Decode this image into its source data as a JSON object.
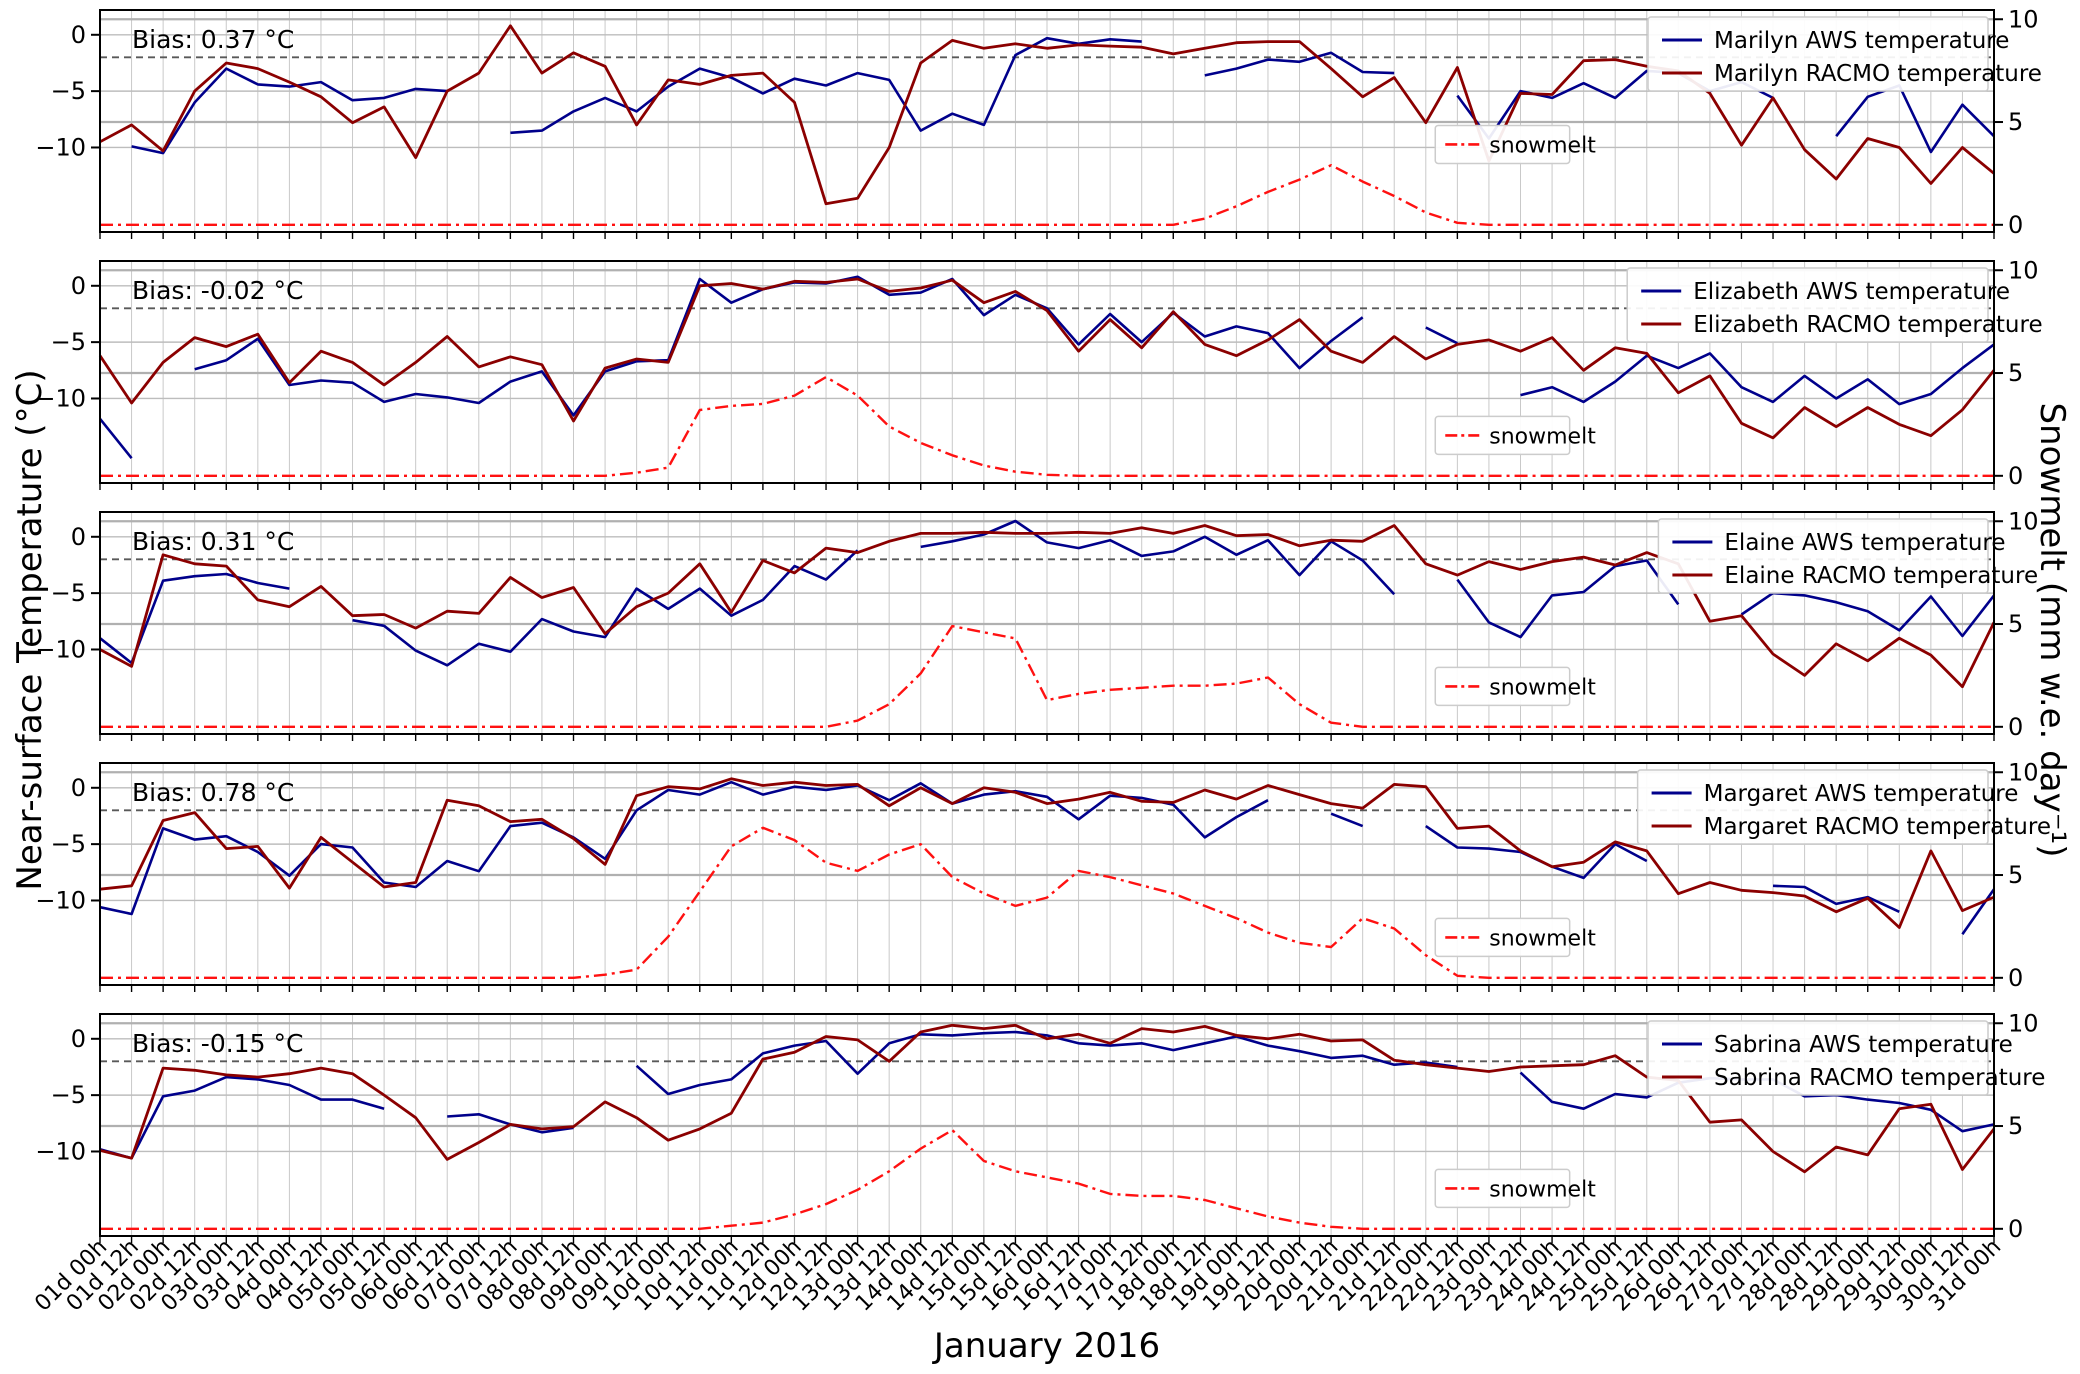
{
  "chart_data": {
    "type": "line",
    "xlabel": "January 2016",
    "ylabel_left": "Near-surface Temperature (°C)",
    "ylabel_right": "Snowmelt (mm w.e. day⁻¹)",
    "x_start_day": 1,
    "x_step_days": 0.5,
    "x_range_days": [
      1,
      31
    ],
    "temp_ylim": [
      -17.5,
      2.2
    ],
    "melt_ylim": [
      0,
      10
    ],
    "temp_tick_labels": [
      "0",
      "−5",
      "−10"
    ],
    "temp_tick_values": [
      0,
      -5,
      -10
    ],
    "melt_tick_labels": [
      "10",
      "5",
      "0"
    ],
    "melt_tick_values": [
      10,
      5,
      0
    ],
    "dashed_reference_temp": -2,
    "colors": {
      "aws": "#00008b",
      "racmo": "#8b0000",
      "snowmelt": "#ff1111",
      "grid": "#c9c9c9",
      "dashed": "#595959"
    },
    "x_tick_labels": [
      "01d 00h",
      "01d 12h",
      "02d 00h",
      "02d 12h",
      "03d 00h",
      "03d 12h",
      "04d 00h",
      "04d 12h",
      "05d 00h",
      "05d 12h",
      "06d 00h",
      "06d 12h",
      "07d 00h",
      "07d 12h",
      "08d 00h",
      "08d 12h",
      "09d 00h",
      "09d 12h",
      "10d 00h",
      "10d 12h",
      "11d 00h",
      "11d 12h",
      "12d 00h",
      "12d 12h",
      "13d 00h",
      "13d 12h",
      "14d 00h",
      "14d 12h",
      "15d 00h",
      "15d 12h",
      "16d 00h",
      "16d 12h",
      "17d 00h",
      "17d 12h",
      "18d 00h",
      "18d 12h",
      "19d 00h",
      "19d 12h",
      "20d 00h",
      "20d 12h",
      "21d 00h",
      "21d 12h",
      "22d 00h",
      "22d 12h",
      "23d 00h",
      "23d 12h",
      "24d 00h",
      "24d 12h",
      "25d 00h",
      "25d 12h",
      "26d 00h",
      "26d 12h",
      "27d 00h",
      "27d 12h",
      "28d 00h",
      "28d 12h",
      "29d 00h",
      "29d 12h",
      "30d 00h",
      "30d 12h",
      "31d 00h"
    ],
    "panels": [
      {
        "station": "Marilyn",
        "bias_label": "Bias: 0.37 °C",
        "legend": [
          "Marilyn AWS temperature",
          "Marilyn RACMO temperature"
        ],
        "snowmelt_label": "snowmelt",
        "aws_temp": [
          null,
          -9.9,
          -10.5,
          -6.0,
          -3.0,
          -4.4,
          -4.6,
          -4.2,
          -5.8,
          -5.6,
          -4.8,
          -5.0,
          null,
          -8.7,
          -8.5,
          -6.8,
          -5.6,
          -6.8,
          -4.6,
          -3.0,
          -3.8,
          -5.2,
          -3.9,
          -4.5,
          -3.4,
          -4.0,
          -8.5,
          -7.0,
          -8.0,
          -1.8,
          -0.3,
          -0.8,
          -0.4,
          -0.6,
          null,
          -3.6,
          -3.0,
          -2.2,
          -2.4,
          -1.6,
          -3.3,
          -3.4,
          null,
          -5.4,
          -9.2,
          -5.0,
          -5.6,
          -4.3,
          -5.6,
          -3.2,
          -3.4,
          -5.0,
          -4.2,
          -5.6,
          null,
          -9.0,
          -5.5,
          -4.5,
          -10.4,
          -6.2,
          -9.0
        ],
        "racmo_temp": [
          -9.5,
          -8.0,
          -10.3,
          -5.0,
          -2.5,
          -3.0,
          -4.2,
          -5.5,
          -7.8,
          -6.4,
          -10.9,
          -5.0,
          -3.4,
          0.8,
          -3.4,
          -1.6,
          -2.8,
          -8.0,
          -4.0,
          -4.4,
          -3.6,
          -3.4,
          -6.0,
          -15.0,
          -14.5,
          -10.0,
          -2.5,
          -0.5,
          -1.2,
          -0.8,
          -1.2,
          -0.9,
          -1.0,
          -1.1,
          -1.7,
          -1.2,
          -0.7,
          -0.6,
          -0.6,
          -3.0,
          -5.5,
          -3.8,
          -7.8,
          -2.9,
          -11.2,
          -5.2,
          -5.3,
          -2.3,
          -2.2,
          -2.8,
          -3.2,
          -5.2,
          -9.8,
          -5.6,
          -10.2,
          -12.8,
          -9.2,
          -10.0,
          -13.2,
          -10.0,
          -12.3
        ],
        "snowmelt": [
          0,
          0,
          0,
          0,
          0,
          0,
          0,
          0,
          0,
          0,
          0,
          0,
          0,
          0,
          0,
          0,
          0,
          0,
          0,
          0,
          0,
          0,
          0,
          0,
          0,
          0,
          0,
          0,
          0,
          0,
          0,
          0,
          0,
          0,
          0,
          0.3,
          0.9,
          1.6,
          2.2,
          2.9,
          2.1,
          1.4,
          0.6,
          0.1,
          0,
          0,
          0,
          0,
          0,
          0,
          0,
          0,
          0,
          0,
          0,
          0,
          0,
          0,
          0,
          0,
          0
        ]
      },
      {
        "station": "Elizabeth",
        "bias_label": "Bias: -0.02 °C",
        "legend": [
          "Elizabeth AWS temperature",
          "Elizabeth RACMO temperature"
        ],
        "snowmelt_label": "snowmelt",
        "aws_temp": [
          -11.8,
          -15.3,
          null,
          -7.4,
          -6.6,
          -4.7,
          -8.8,
          -8.4,
          -8.6,
          -10.3,
          -9.6,
          -9.9,
          -10.4,
          -8.5,
          -7.6,
          -11.5,
          -7.6,
          -6.7,
          -6.6,
          0.6,
          -1.5,
          -0.3,
          0.3,
          0.2,
          0.8,
          -0.8,
          -0.6,
          0.6,
          -2.6,
          -0.8,
          -2.0,
          -5.2,
          -2.5,
          -5.0,
          -2.4,
          -4.5,
          -3.6,
          -4.2,
          -7.3,
          -4.9,
          -2.8,
          null,
          -3.7,
          -5.1,
          null,
          -9.7,
          -9.0,
          -10.3,
          -8.5,
          -6.2,
          -7.3,
          -6.0,
          -9.0,
          -10.3,
          -8.0,
          -10.0,
          -8.3,
          -10.5,
          -9.6,
          -7.3,
          -5.2
        ],
        "racmo_temp": [
          -6.2,
          -10.4,
          -6.8,
          -4.6,
          -5.4,
          -4.3,
          -8.6,
          -5.8,
          -6.8,
          -8.8,
          -6.8,
          -4.5,
          -7.2,
          -6.3,
          -7.0,
          -12.0,
          -7.3,
          -6.5,
          -6.8,
          0.0,
          0.2,
          -0.3,
          0.4,
          0.3,
          0.6,
          -0.5,
          -0.2,
          0.5,
          -1.5,
          -0.5,
          -2.2,
          -5.8,
          -3.0,
          -5.5,
          -2.3,
          -5.2,
          -6.2,
          -4.8,
          -3.0,
          -5.8,
          -6.8,
          -4.5,
          -6.5,
          -5.2,
          -4.8,
          -5.8,
          -4.6,
          -7.5,
          -5.5,
          -6.0,
          -9.5,
          -8.0,
          -12.2,
          -13.5,
          -10.8,
          -12.5,
          -10.8,
          -12.3,
          -13.3,
          -11.0,
          -7.5
        ],
        "snowmelt": [
          0,
          0,
          0,
          0,
          0,
          0,
          0,
          0,
          0,
          0,
          0,
          0,
          0,
          0,
          0,
          0,
          0,
          0.15,
          0.4,
          3.2,
          3.4,
          3.5,
          3.9,
          4.8,
          3.9,
          2.4,
          1.6,
          1.0,
          0.5,
          0.2,
          0.05,
          0,
          0,
          0,
          0,
          0,
          0,
          0,
          0,
          0,
          0,
          0,
          0,
          0,
          0,
          0,
          0,
          0,
          0,
          0,
          0,
          0,
          0,
          0,
          0,
          0,
          0,
          0,
          0,
          0,
          0
        ]
      },
      {
        "station": "Elaine",
        "bias_label": "Bias: 0.31 °C",
        "legend": [
          "Elaine AWS temperature",
          "Elaine RACMO temperature"
        ],
        "snowmelt_label": "snowmelt",
        "aws_temp": [
          -9.0,
          -11.2,
          -3.9,
          -3.5,
          -3.3,
          -4.1,
          -4.6,
          null,
          -7.4,
          -7.9,
          -10.1,
          -11.4,
          -9.5,
          -10.2,
          -7.3,
          -8.4,
          -8.9,
          -4.6,
          -6.4,
          -4.6,
          -7.0,
          -5.6,
          -2.6,
          -3.8,
          -1.2,
          null,
          -0.9,
          -0.4,
          0.2,
          1.4,
          -0.5,
          -1.0,
          -0.3,
          -1.7,
          -1.3,
          0.0,
          -1.6,
          -0.3,
          -3.4,
          -0.4,
          -2.1,
          -5.1,
          null,
          -3.8,
          -7.6,
          -8.9,
          -5.2,
          -4.9,
          -2.6,
          -2.1,
          -6.0,
          null,
          -6.9,
          -5.0,
          -5.2,
          -5.8,
          -6.6,
          -8.3,
          -5.3,
          -8.8,
          -5.2
        ],
        "racmo_temp": [
          -10.0,
          -11.5,
          -1.6,
          -2.4,
          -2.6,
          -5.6,
          -6.2,
          -4.4,
          -7.0,
          -6.9,
          -8.1,
          -6.6,
          -6.8,
          -3.6,
          -5.4,
          -4.5,
          -8.6,
          -6.2,
          -5.0,
          -2.4,
          -6.7,
          -2.1,
          -3.2,
          -1.0,
          -1.4,
          -0.4,
          0.3,
          0.3,
          0.4,
          0.3,
          0.3,
          0.4,
          0.3,
          0.8,
          0.3,
          1.0,
          0.1,
          0.2,
          -0.8,
          -0.3,
          -0.4,
          1.0,
          -2.4,
          -3.4,
          -2.2,
          -2.9,
          -2.2,
          -1.8,
          -2.5,
          -1.4,
          -2.4,
          -7.5,
          -7.0,
          -10.4,
          -12.3,
          -9.5,
          -11.0,
          -9.0,
          -10.5,
          -13.3,
          -7.6
        ],
        "snowmelt": [
          0,
          0,
          0,
          0,
          0,
          0,
          0,
          0,
          0,
          0,
          0,
          0,
          0,
          0,
          0,
          0,
          0,
          0,
          0,
          0,
          0,
          0,
          0,
          0,
          0.3,
          1.1,
          2.6,
          4.9,
          4.6,
          4.3,
          1.3,
          1.6,
          1.8,
          1.9,
          2.0,
          2.0,
          2.1,
          2.4,
          1.1,
          0.2,
          0,
          0,
          0,
          0,
          0,
          0,
          0,
          0,
          0,
          0,
          0,
          0,
          0,
          0,
          0,
          0,
          0,
          0,
          0,
          0,
          0
        ]
      },
      {
        "station": "Margaret",
        "bias_label": "Bias: 0.78 °C",
        "legend": [
          "Margaret AWS temperature",
          "Margaret RACMO temperature"
        ],
        "snowmelt_label": "snowmelt",
        "aws_temp": [
          -10.6,
          -11.2,
          -3.6,
          -4.6,
          -4.3,
          -5.7,
          -7.8,
          -5.0,
          -5.3,
          -8.4,
          -8.8,
          -6.5,
          -7.4,
          -3.4,
          -3.1,
          -4.4,
          -6.3,
          -2.0,
          -0.2,
          -0.6,
          0.5,
          -0.6,
          0.1,
          -0.2,
          0.2,
          -1.1,
          0.4,
          -1.4,
          -0.6,
          -0.3,
          -0.8,
          -2.8,
          -0.7,
          -0.9,
          -1.5,
          -4.4,
          -2.6,
          -1.1,
          null,
          -2.3,
          -3.4,
          null,
          -3.4,
          -5.3,
          -5.4,
          -5.7,
          -7.0,
          -8.0,
          -5.0,
          -6.5,
          null,
          -8.5,
          null,
          -8.7,
          -8.8,
          -10.3,
          -9.7,
          -11.0,
          null,
          -13.0,
          -9.0
        ],
        "racmo_temp": [
          -9.0,
          -8.7,
          -2.9,
          -2.2,
          -5.4,
          -5.2,
          -8.9,
          -4.4,
          -6.6,
          -8.8,
          -8.4,
          -1.1,
          -1.6,
          -3.0,
          -2.8,
          -4.5,
          -6.8,
          -0.7,
          0.1,
          -0.1,
          0.8,
          0.2,
          0.5,
          0.2,
          0.3,
          -1.6,
          0.0,
          -1.4,
          0.0,
          -0.4,
          -1.4,
          -1.0,
          -0.4,
          -1.2,
          -1.3,
          -0.2,
          -1.0,
          0.2,
          -0.6,
          -1.4,
          -1.8,
          0.3,
          0.1,
          -3.6,
          -3.4,
          -5.6,
          -7.0,
          -6.6,
          -4.8,
          -5.6,
          -9.4,
          -8.4,
          -9.1,
          -9.3,
          -9.6,
          -11.0,
          -9.8,
          -12.4,
          -5.6,
          -10.9,
          -9.7
        ],
        "snowmelt": [
          0,
          0,
          0,
          0,
          0,
          0,
          0,
          0,
          0,
          0,
          0,
          0,
          0,
          0,
          0,
          0,
          0.15,
          0.4,
          2.0,
          4.2,
          6.4,
          7.3,
          6.7,
          5.6,
          5.2,
          6.0,
          6.5,
          4.9,
          4.1,
          3.5,
          3.9,
          5.2,
          4.9,
          4.5,
          4.1,
          3.5,
          2.9,
          2.2,
          1.7,
          1.5,
          2.9,
          2.4,
          1.1,
          0.1,
          0,
          0,
          0,
          0,
          0,
          0,
          0,
          0,
          0,
          0,
          0,
          0,
          0,
          0,
          0,
          0,
          0
        ]
      },
      {
        "station": "Sabrina",
        "bias_label": "Bias: -0.15 °C",
        "legend": [
          "Sabrina AWS temperature",
          "Sabrina RACMO temperature"
        ],
        "snowmelt_label": "snowmelt",
        "aws_temp": [
          -9.8,
          -10.6,
          -5.1,
          -4.6,
          -3.4,
          -3.6,
          -4.1,
          -5.4,
          -5.4,
          -6.2,
          null,
          -6.9,
          -6.7,
          -7.6,
          -8.3,
          -7.9,
          null,
          -2.4,
          -4.9,
          -4.1,
          -3.6,
          -1.3,
          -0.6,
          -0.2,
          -3.1,
          -0.4,
          0.4,
          0.3,
          0.5,
          0.6,
          0.3,
          -0.4,
          -0.6,
          -0.4,
          -1.0,
          -0.4,
          0.2,
          -0.6,
          -1.1,
          -1.7,
          -1.5,
          -2.3,
          -2.1,
          -2.5,
          null,
          -3.0,
          -5.6,
          -6.2,
          -4.9,
          -5.2,
          -3.9,
          -3.5,
          -3.6,
          -3.6,
          -5.1,
          -5.0,
          -5.4,
          -5.7,
          -6.3,
          -8.2,
          -7.6
        ],
        "racmo_temp": [
          -9.9,
          -10.6,
          -2.6,
          -2.8,
          -3.2,
          -3.4,
          -3.1,
          -2.6,
          -3.1,
          -5.0,
          -7.0,
          -10.7,
          -9.2,
          -7.6,
          -8.0,
          -7.8,
          -5.6,
          -7.0,
          -9.0,
          -8.0,
          -6.6,
          -1.8,
          -1.2,
          0.2,
          -0.1,
          -2.0,
          0.6,
          1.2,
          0.9,
          1.2,
          0.0,
          0.4,
          -0.4,
          0.9,
          0.6,
          1.1,
          0.3,
          0.0,
          0.4,
          -0.2,
          -0.1,
          -1.9,
          -2.3,
          -2.6,
          -2.9,
          -2.5,
          -2.4,
          -2.3,
          -1.5,
          -3.4,
          -3.7,
          -7.4,
          -7.2,
          -10.0,
          -11.8,
          -9.6,
          -10.3,
          -6.2,
          -5.8,
          -11.6,
          -8.0
        ],
        "snowmelt": [
          0,
          0,
          0,
          0,
          0,
          0,
          0,
          0,
          0,
          0,
          0,
          0,
          0,
          0,
          0,
          0,
          0,
          0,
          0,
          0,
          0.15,
          0.3,
          0.7,
          1.2,
          1.9,
          2.8,
          3.9,
          4.8,
          3.3,
          2.8,
          2.5,
          2.2,
          1.7,
          1.6,
          1.6,
          1.4,
          1.0,
          0.6,
          0.3,
          0.1,
          0,
          0,
          0,
          0,
          0,
          0,
          0,
          0,
          0,
          0,
          0,
          0,
          0,
          0,
          0,
          0,
          0,
          0,
          0,
          0,
          0
        ]
      }
    ]
  }
}
